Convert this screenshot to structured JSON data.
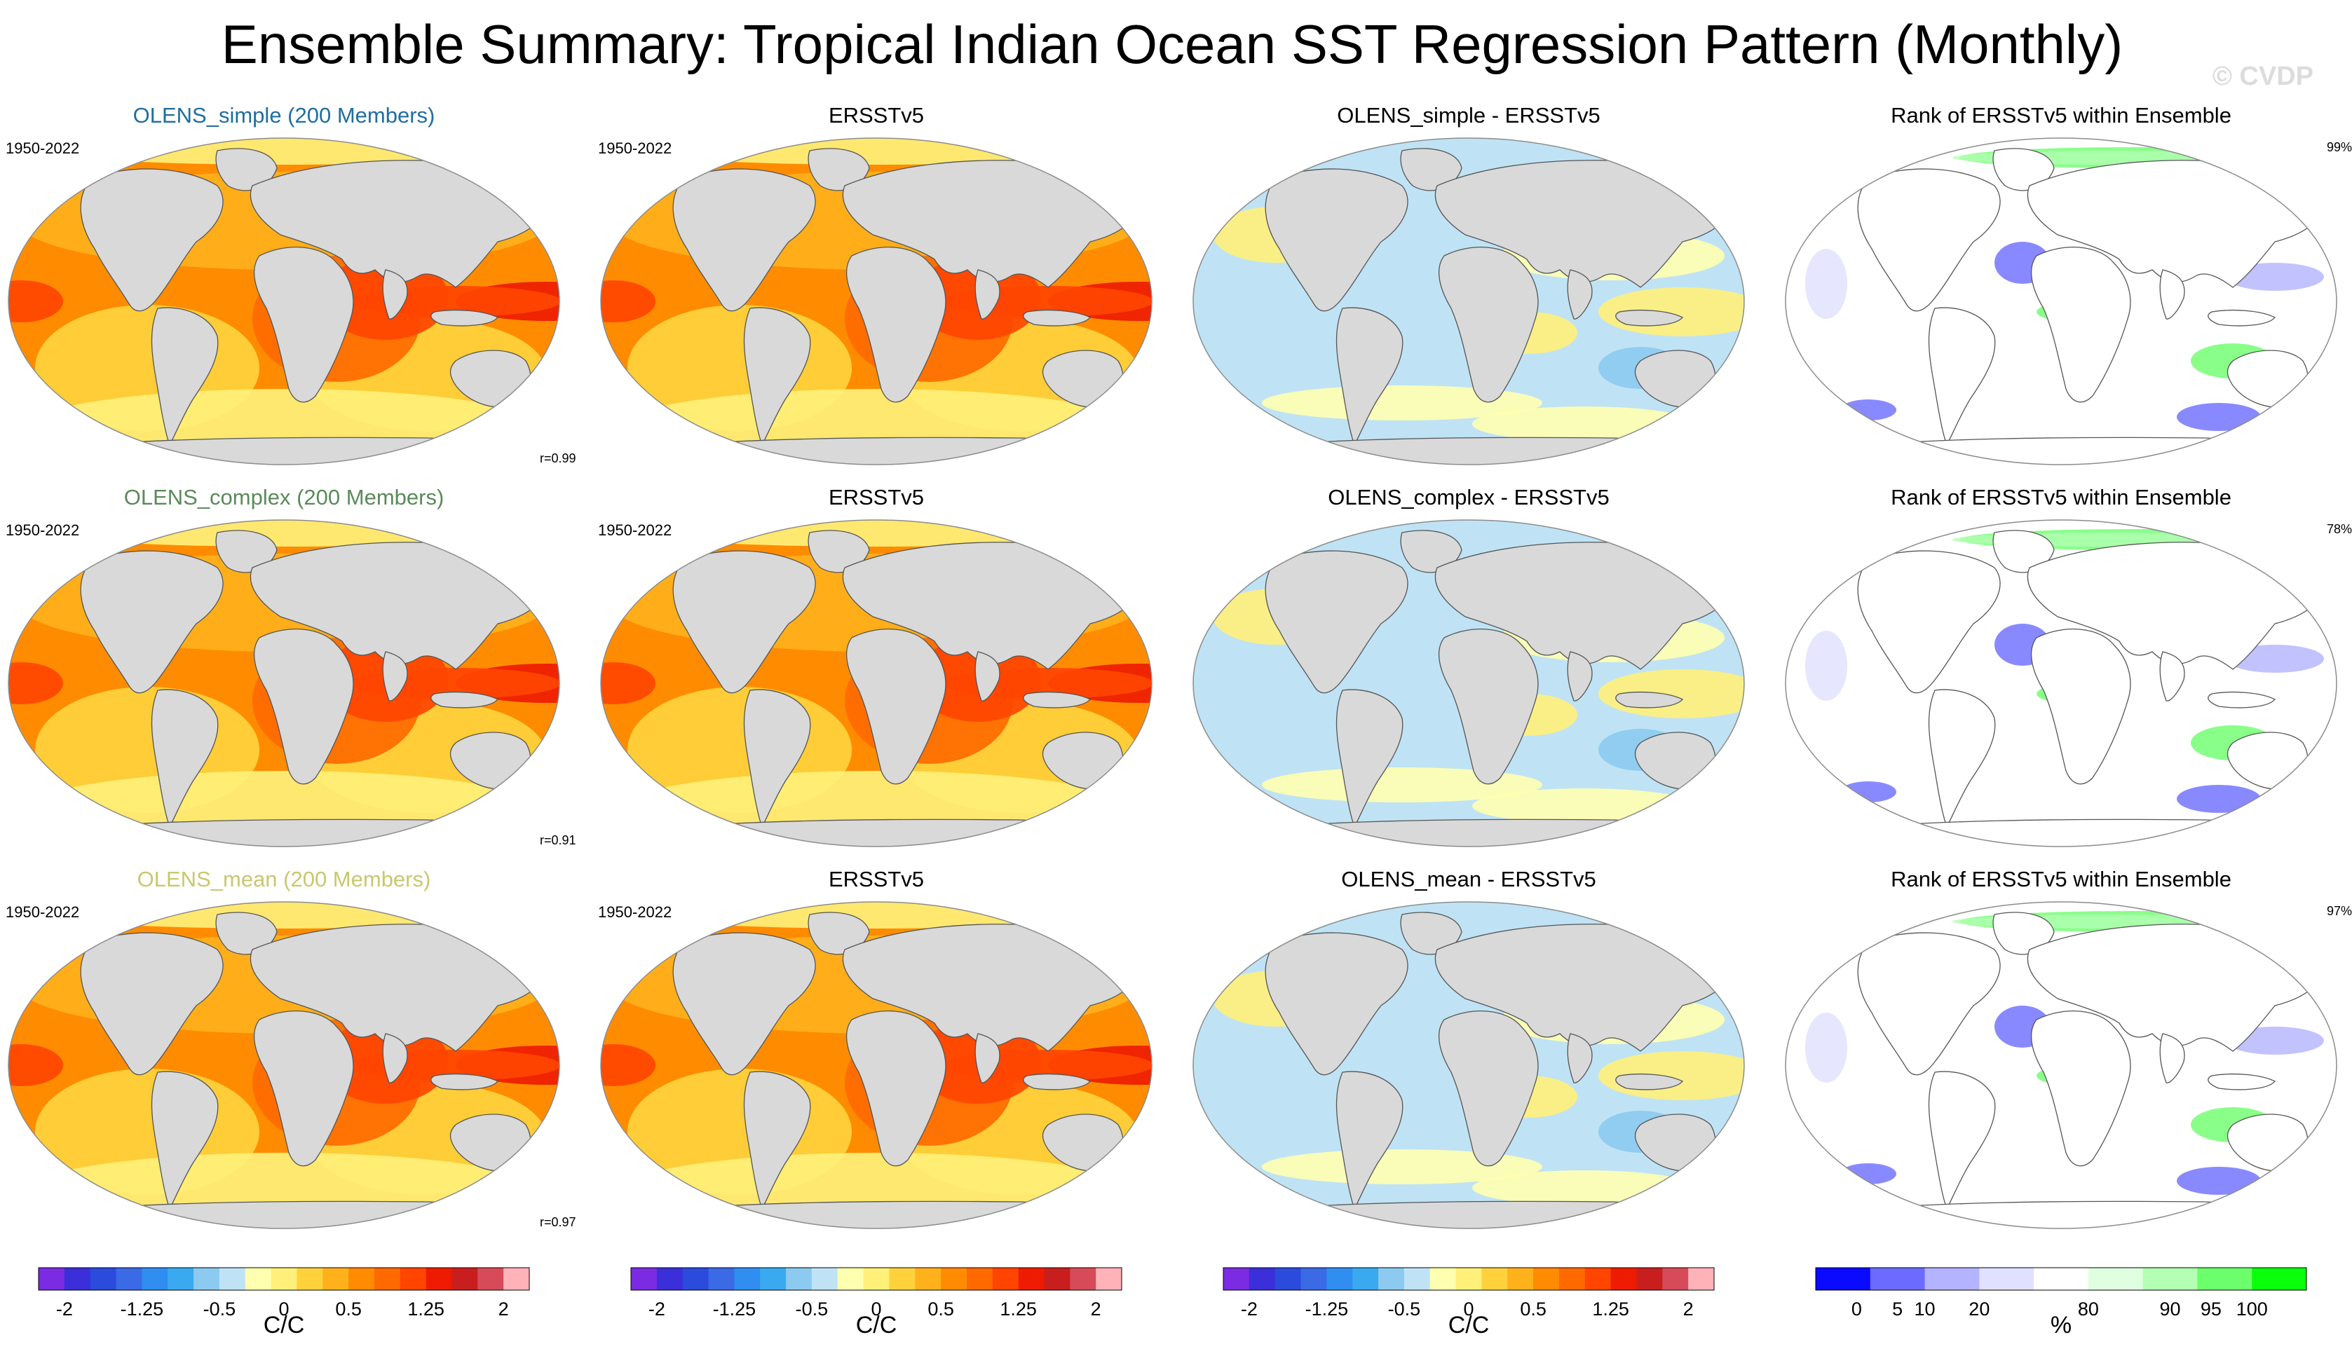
{
  "title": "Ensemble Summary: Tropical Indian Ocean SST Regression Pattern (Monthly)",
  "watermark": "© CVDP",
  "colors": {
    "model_simple": "#1f6e9e",
    "model_complex": "#5a8a5a",
    "model_mean": "#c8c86e",
    "land": "#d9d9d9",
    "coast": "#555555"
  },
  "rows": [
    {
      "model": {
        "title": "OLENS_simple (200 Members)",
        "period": "1950-2022",
        "corr": "r=0.99",
        "color_key": "model_simple"
      },
      "obs": {
        "title": "ERSSTv5",
        "period": "1950-2022"
      },
      "diff": {
        "title": "OLENS_simple - ERSSTv5"
      },
      "rank": {
        "title": "Rank of ERSSTv5 within Ensemble",
        "percent": "99%"
      }
    },
    {
      "model": {
        "title": "OLENS_complex (200 Members)",
        "period": "1950-2022",
        "corr": "r=0.91",
        "color_key": "model_complex"
      },
      "obs": {
        "title": "ERSSTv5",
        "period": "1950-2022"
      },
      "diff": {
        "title": "OLENS_complex - ERSSTv5"
      },
      "rank": {
        "title": "Rank of ERSSTv5 within Ensemble",
        "percent": "78%"
      }
    },
    {
      "model": {
        "title": "OLENS_mean (200 Members)",
        "period": "1950-2022",
        "corr": "r=0.97",
        "color_key": "model_mean"
      },
      "obs": {
        "title": "ERSSTv5",
        "period": "1950-2022"
      },
      "diff": {
        "title": "OLENS_mean - ERSSTv5"
      },
      "rank": {
        "title": "Rank of ERSSTv5 within Ensemble",
        "percent": "97%"
      }
    }
  ],
  "colorbars": {
    "sst": {
      "unit": "C/C",
      "colors": [
        "#7b2be2",
        "#3b2fd9",
        "#2a4bdb",
        "#3a6ae6",
        "#2f8ef0",
        "#3aaaf0",
        "#8ccaf0",
        "#bfe3f5",
        "#ffffb0",
        "#fff07a",
        "#ffd23c",
        "#ffb11c",
        "#ff8c00",
        "#ff6a00",
        "#ff4500",
        "#ee1b00",
        "#c81e1e",
        "#d64a5a",
        "#ffb3b8"
      ],
      "tick_labels": [
        "-2",
        "-1.25",
        "-0.5",
        "0",
        "0.5",
        "1.25",
        "2"
      ],
      "tick_positions": [
        1,
        4,
        7,
        9.5,
        12,
        15,
        18
      ]
    },
    "rank": {
      "unit": "%",
      "colors": [
        "#0a0aff",
        "#6b6bff",
        "#b3b3ff",
        "#e0e0ff",
        "#ffffff",
        "#e0ffe0",
        "#b3ffb3",
        "#6bff6b",
        "#0aff0a"
      ],
      "tick_labels": [
        "0",
        "5",
        "10",
        "20",
        "80",
        "90",
        "95",
        "100"
      ],
      "tick_positions": [
        0.75,
        1.5,
        2,
        3,
        5,
        6.5,
        7.25,
        8
      ]
    }
  }
}
